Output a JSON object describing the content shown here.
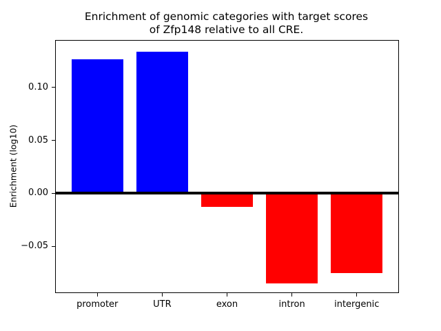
{
  "chart_data": {
    "type": "bar",
    "title": "Enrichment of genomic categories with target scores\nof Zfp148 relative to all CRE.",
    "ylabel": "Enrichment (log10)",
    "xlabel": "",
    "categories": [
      "promoter",
      "UTR",
      "exon",
      "intron",
      "intergenic"
    ],
    "values": [
      0.127,
      0.134,
      -0.013,
      -0.085,
      -0.075
    ],
    "bar_colors": [
      "#0000ff",
      "#0000ff",
      "#ff0000",
      "#ff0000",
      "#ff0000"
    ],
    "positive_color": "#0000ff",
    "negative_color": "#ff0000",
    "axis_color": "#000000",
    "background_color": "#ffffff",
    "ylim": [
      -0.0935,
      0.1443
    ],
    "yticks": [
      {
        "label": "0.10",
        "value": 0.1
      },
      {
        "label": "0.05",
        "value": 0.05
      },
      {
        "label": "0.00",
        "value": 0.0
      },
      {
        "label": "−0.05",
        "value": -0.05
      }
    ],
    "zero_line": true,
    "grid": false,
    "legend": null,
    "layout": {
      "bar_width_frac": 0.8,
      "x_edge_pad": 0.64
    }
  }
}
